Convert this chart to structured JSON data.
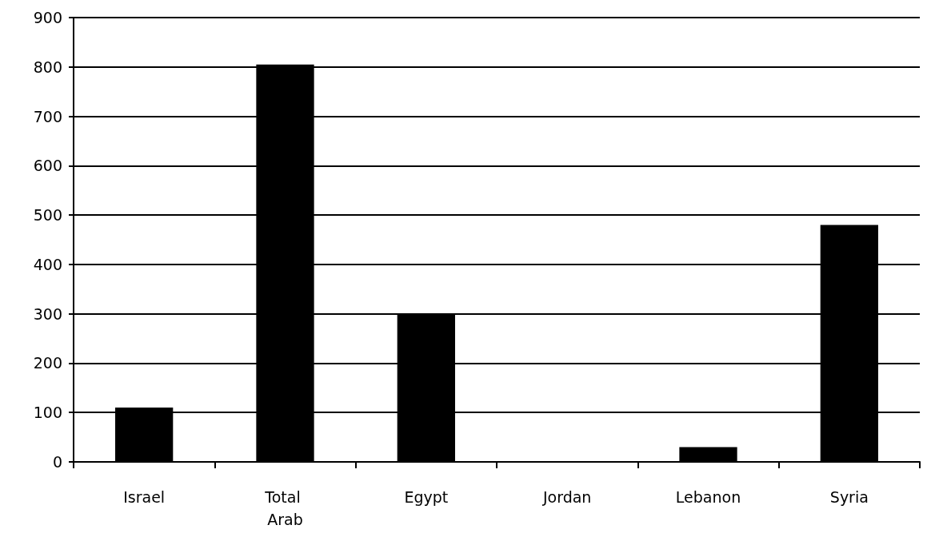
{
  "chart_data": {
    "type": "bar",
    "categories": [
      "Israel",
      "Total Arab",
      "Egypt",
      "Jordan",
      "Lebanon",
      "Syria"
    ],
    "values": [
      110,
      805,
      300,
      0,
      30,
      480
    ],
    "color": "#000000",
    "ylim": [
      0,
      900
    ],
    "yticks": [
      0,
      100,
      200,
      300,
      400,
      500,
      600,
      700,
      800,
      900
    ],
    "grid": "y"
  }
}
